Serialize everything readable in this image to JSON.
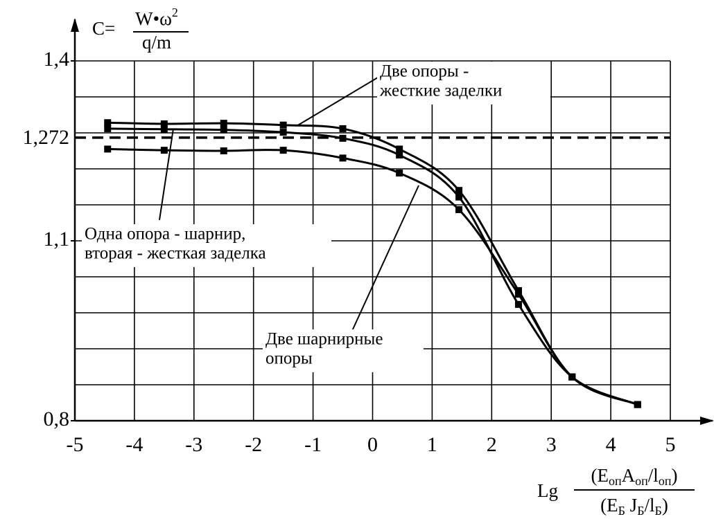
{
  "chart_data": {
    "type": "line",
    "y_label": {
      "prefix": "C=",
      "numerator": "W•ω",
      "numerator_sup": "2",
      "denominator": "q/m"
    },
    "x_label": {
      "prefix": "Lg",
      "numerator": [
        "(E",
        "оп",
        "A",
        "оп",
        "/l",
        "оп",
        ")"
      ],
      "denominator": [
        "(E",
        "Б",
        " J",
        "Б",
        "/l",
        "Б",
        ")"
      ]
    },
    "x": [
      -4.45,
      -3.5,
      -2.5,
      -1.5,
      -0.5,
      0.45,
      1.45,
      2.45,
      3.35,
      4.45
    ],
    "series": [
      {
        "color": "#000000",
        "values": [
          1.297,
          1.295,
          1.296,
          1.293,
          1.287,
          1.253,
          1.184,
          1.017,
          0.873,
          0.827
        ]
      },
      {
        "color": "#000000",
        "values": [
          1.287,
          1.286,
          1.285,
          1.281,
          1.271,
          1.243,
          1.173,
          0.994,
          0.873,
          0.827
        ]
      },
      {
        "color": "#000000",
        "values": [
          1.253,
          1.251,
          1.25,
          1.251,
          1.238,
          1.213,
          1.152,
          1.011,
          0.873,
          0.827
        ]
      }
    ],
    "annotations": [
      {
        "lines": [
          "Две опоры -",
          "жесткие заделки"
        ]
      },
      {
        "lines": [
          "Одна опора - шарнир,",
          "вторая - жесткая заделка"
        ]
      },
      {
        "lines": [
          "Две шарнирные",
          "опоры"
        ]
      }
    ],
    "xlim": [
      -5,
      5
    ],
    "xticks": [
      -5,
      -4,
      -3,
      -2,
      -1,
      0,
      1,
      2,
      3,
      4,
      5
    ],
    "ylim": [
      0.8,
      1.4
    ],
    "yticks": [
      {
        "value": 0.8,
        "label": "0,8"
      },
      {
        "value": 1.1,
        "label": "1,1"
      },
      {
        "value": 1.4,
        "label": "1,4"
      }
    ],
    "y_grid": [
      0.86,
      0.92,
      0.98,
      1.04,
      1.1,
      1.16,
      1.22,
      1.28,
      1.34,
      1.4
    ],
    "reference_line": {
      "value": 1.272,
      "label": "1,272",
      "dashed": true
    },
    "grid": true
  }
}
